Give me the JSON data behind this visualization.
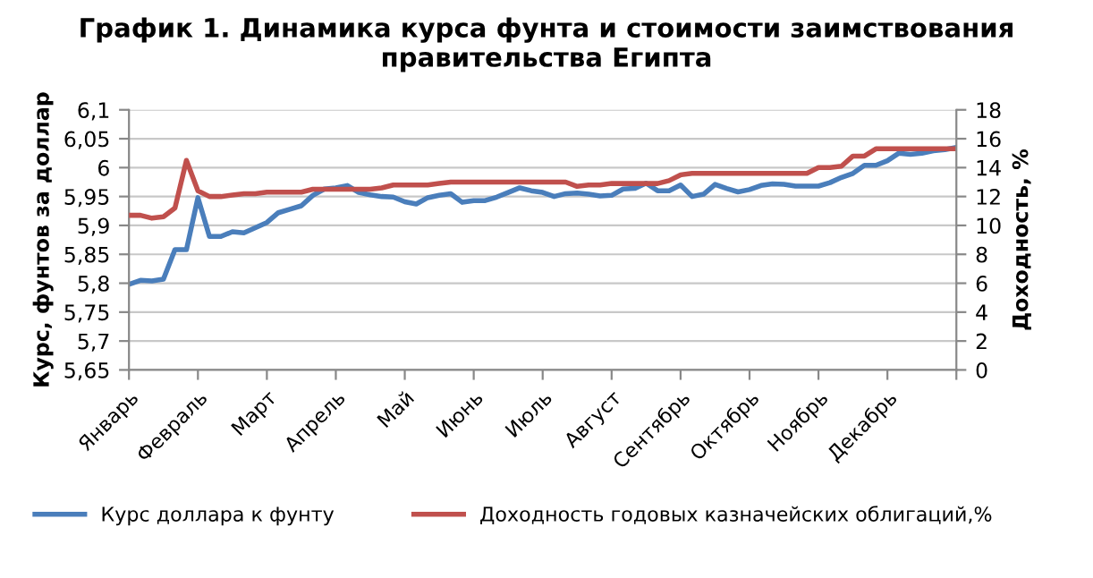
{
  "chart_data": {
    "type": "line",
    "title": "График 1. Динамика курса фунта и стоимости заимствования\nправительства Египта",
    "ylabel": "Курс, фунтов за доллар",
    "y2label": "Доходность, %",
    "categories": [
      "Январь",
      null,
      null,
      null,
      null,
      null,
      "Февраль",
      null,
      null,
      null,
      null,
      null,
      "Март",
      null,
      null,
      null,
      null,
      null,
      "Апрель",
      null,
      null,
      null,
      null,
      null,
      "Май",
      null,
      null,
      null,
      null,
      null,
      "Июнь",
      null,
      null,
      null,
      null,
      null,
      "Июль",
      null,
      null,
      null,
      null,
      null,
      "Август",
      null,
      null,
      null,
      null,
      null,
      "Сентябрь",
      null,
      null,
      null,
      null,
      null,
      "Октябрь",
      null,
      null,
      null,
      null,
      null,
      "Ноябрь",
      null,
      null,
      null,
      null,
      null,
      "Декабрь",
      null,
      null,
      null,
      null,
      null,
      null
    ],
    "ylim": [
      5.65,
      6.1
    ],
    "yticks": [
      {
        "value": 5.65,
        "label": "5,65"
      },
      {
        "value": 5.7,
        "label": "5,7"
      },
      {
        "value": 5.75,
        "label": "5,75"
      },
      {
        "value": 5.8,
        "label": "5,8"
      },
      {
        "value": 5.85,
        "label": "5,85"
      },
      {
        "value": 5.9,
        "label": "5,9"
      },
      {
        "value": 5.95,
        "label": "5,95"
      },
      {
        "value": 6,
        "label": "6"
      },
      {
        "value": 6.05,
        "label": "6,05"
      },
      {
        "value": 6.1,
        "label": "6,1"
      }
    ],
    "y2lim": [
      0,
      18
    ],
    "y2ticks": [
      0,
      2,
      4,
      6,
      8,
      10,
      12,
      14,
      16,
      18
    ],
    "grid": "y",
    "legend": "bottom",
    "marker": "none",
    "line_style": "solid",
    "series": [
      {
        "name": "Курс доллара к фунту",
        "color": "#4a7ebb",
        "axis": "y",
        "values": [
          5.798,
          5.805,
          5.804,
          5.807,
          5.858,
          5.858,
          5.948,
          5.881,
          5.881,
          5.889,
          5.887,
          5.896,
          5.905,
          5.922,
          5.928,
          5.934,
          5.952,
          5.963,
          5.965,
          5.969,
          5.957,
          5.953,
          5.95,
          5.949,
          5.941,
          5.937,
          5.948,
          5.952,
          5.955,
          5.94,
          5.943,
          5.943,
          5.949,
          5.957,
          5.965,
          5.96,
          5.957,
          5.95,
          5.955,
          5.956,
          5.954,
          5.951,
          5.952,
          5.963,
          5.964,
          5.973,
          5.96,
          5.96,
          5.97,
          5.95,
          5.954,
          5.971,
          5.964,
          5.958,
          5.962,
          5.969,
          5.972,
          5.971,
          5.968,
          5.968,
          5.968,
          5.974,
          5.983,
          5.99,
          6.004,
          6.004,
          6.012,
          6.025,
          6.023,
          6.025,
          6.029,
          6.031,
          6.035
        ]
      },
      {
        "name": "Доходность годовых казначейских облигаций,%",
        "color": "#c0504d",
        "axis": "y2",
        "values": [
          10.7,
          10.7,
          10.5,
          10.6,
          11.2,
          14.5,
          12.4,
          12.0,
          12.0,
          12.1,
          12.2,
          12.2,
          12.3,
          12.3,
          12.3,
          12.3,
          12.5,
          12.5,
          12.5,
          12.5,
          12.5,
          12.5,
          12.6,
          12.8,
          12.8,
          12.8,
          12.8,
          12.9,
          13.0,
          13.0,
          13.0,
          13.0,
          13.0,
          13.0,
          13.0,
          13.0,
          13.0,
          13.0,
          13.0,
          12.7,
          12.8,
          12.8,
          12.9,
          12.9,
          12.9,
          12.9,
          12.9,
          13.1,
          13.5,
          13.6,
          13.6,
          13.6,
          13.6,
          13.6,
          13.6,
          13.6,
          13.6,
          13.6,
          13.6,
          13.6,
          14.0,
          14.0,
          14.1,
          14.8,
          14.8,
          15.3,
          15.3,
          15.3,
          15.3,
          15.3,
          15.3,
          15.3,
          15.3
        ]
      }
    ]
  }
}
